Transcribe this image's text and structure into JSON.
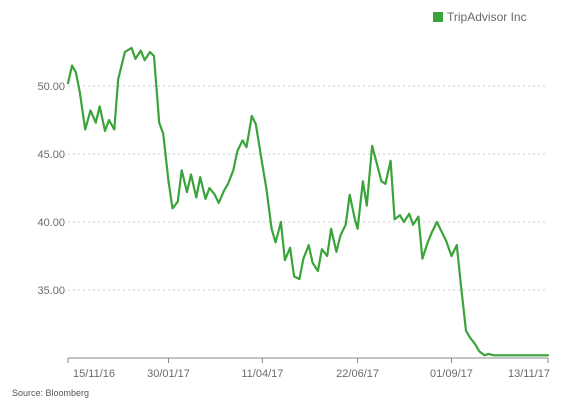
{
  "colors": {
    "series": "#3aa339",
    "grid": "#c8c8c8",
    "axis": "#8a8a8a",
    "text": "#6b6b6b",
    "background": "#ffffff"
  },
  "source": "Source: Bloomberg",
  "chart_data": {
    "type": "line",
    "title": "",
    "xlabel": "",
    "ylabel": "",
    "legend_position": "top-right",
    "grid": "horizontal-dotted",
    "ylim": [
      30,
      55
    ],
    "yticks": [
      35,
      40,
      45,
      50
    ],
    "ytick_labels": [
      "35.00",
      "40.00",
      "45.00",
      "50.00"
    ],
    "xlim": [
      "2016-11-15",
      "2017-11-13"
    ],
    "xticks": [
      "2016-11-15",
      "2017-01-30",
      "2017-04-11",
      "2017-06-22",
      "2017-09-01",
      "2017-11-13"
    ],
    "xtick_labels": [
      "15/11/16",
      "30/01/17",
      "11/04/17",
      "22/06/17",
      "01/09/17",
      "13/11/17"
    ],
    "series": [
      {
        "name": "TripAdvisor Inc",
        "x": [
          "2016-11-15",
          "2016-11-18",
          "2016-11-21",
          "2016-11-24",
          "2016-11-28",
          "2016-12-02",
          "2016-12-06",
          "2016-12-09",
          "2016-12-13",
          "2016-12-16",
          "2016-12-20",
          "2016-12-23",
          "2016-12-28",
          "2017-01-02",
          "2017-01-05",
          "2017-01-09",
          "2017-01-12",
          "2017-01-16",
          "2017-01-19",
          "2017-01-23",
          "2017-01-26",
          "2017-01-30",
          "2017-02-02",
          "2017-02-06",
          "2017-02-09",
          "2017-02-13",
          "2017-02-16",
          "2017-02-20",
          "2017-02-23",
          "2017-02-27",
          "2017-03-02",
          "2017-03-06",
          "2017-03-09",
          "2017-03-13",
          "2017-03-16",
          "2017-03-20",
          "2017-03-23",
          "2017-03-27",
          "2017-03-30",
          "2017-04-03",
          "2017-04-06",
          "2017-04-11",
          "2017-04-14",
          "2017-04-18",
          "2017-04-21",
          "2017-04-25",
          "2017-04-28",
          "2017-05-02",
          "2017-05-05",
          "2017-05-09",
          "2017-05-12",
          "2017-05-16",
          "2017-05-19",
          "2017-05-23",
          "2017-05-26",
          "2017-05-30",
          "2017-06-02",
          "2017-06-06",
          "2017-06-09",
          "2017-06-13",
          "2017-06-16",
          "2017-06-20",
          "2017-06-22",
          "2017-06-26",
          "2017-06-29",
          "2017-07-03",
          "2017-07-06",
          "2017-07-10",
          "2017-07-13",
          "2017-07-17",
          "2017-07-20",
          "2017-07-24",
          "2017-07-27",
          "2017-07-31",
          "2017-08-03",
          "2017-08-07",
          "2017-08-10",
          "2017-08-14",
          "2017-08-17",
          "2017-08-21",
          "2017-08-24",
          "2017-08-28",
          "2017-09-01",
          "2017-09-05",
          "2017-09-08",
          "2017-09-12",
          "2017-09-15",
          "2017-09-19",
          "2017-09-22",
          "2017-09-26",
          "2017-09-29",
          "2017-10-03",
          "2017-10-06",
          "2017-10-10",
          "2017-10-13",
          "2017-10-17",
          "2017-10-20",
          "2017-10-24",
          "2017-10-27",
          "2017-10-31",
          "2017-11-03",
          "2017-11-06",
          "2017-11-09",
          "2017-11-13"
        ],
        "values": [
          50.2,
          51.5,
          51.0,
          49.5,
          46.8,
          48.2,
          47.3,
          48.5,
          46.7,
          47.5,
          46.8,
          50.5,
          52.5,
          52.8,
          52.0,
          52.6,
          51.9,
          52.5,
          52.2,
          47.3,
          46.5,
          43.0,
          41.0,
          41.5,
          43.8,
          42.2,
          43.5,
          41.8,
          43.3,
          41.7,
          42.5,
          42.0,
          41.4,
          42.3,
          42.8,
          43.8,
          45.2,
          46.0,
          45.5,
          47.8,
          47.2,
          44.2,
          42.5,
          39.5,
          38.5,
          40.0,
          37.2,
          38.1,
          36.0,
          35.8,
          37.3,
          38.3,
          37.0,
          36.4,
          38.0,
          37.5,
          39.5,
          37.8,
          39.0,
          39.8,
          42.0,
          40.2,
          39.5,
          43.0,
          41.2,
          45.6,
          44.5,
          43.0,
          42.8,
          44.5,
          40.2,
          40.5,
          40.0,
          40.6,
          39.8,
          40.4,
          37.3,
          38.5,
          39.2,
          40.0,
          39.4,
          38.6,
          37.5,
          38.3,
          35.5,
          32.0,
          31.5,
          31.0,
          30.5,
          30.2,
          30.3,
          30.2,
          30.2,
          30.2,
          30.2,
          30.2,
          30.2,
          30.2,
          30.2,
          30.2,
          30.2,
          30.2,
          30.2,
          30.2
        ],
        "color": "#3aa339"
      }
    ]
  }
}
